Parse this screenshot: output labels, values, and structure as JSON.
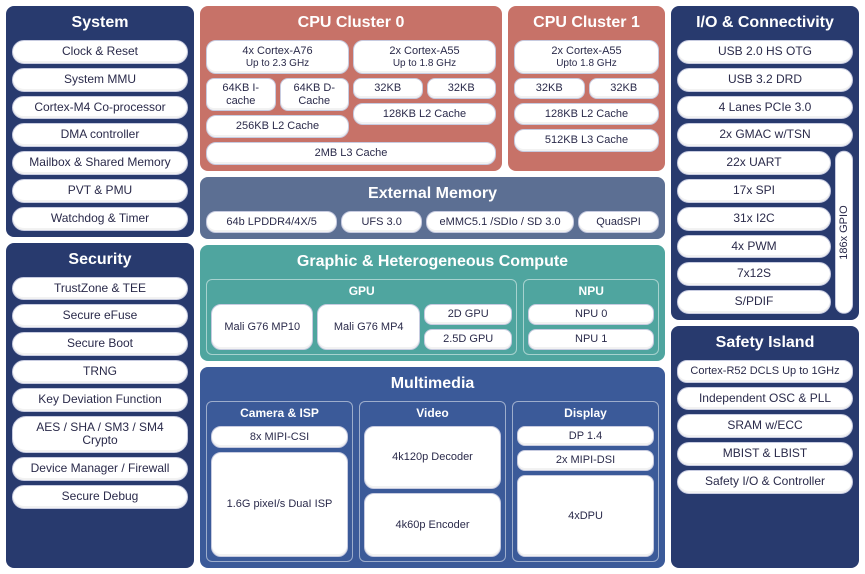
{
  "colors": {
    "navy": "#283a6e",
    "rose": "#c77268",
    "slate": "#5c6f93",
    "teal": "#4fa59f",
    "blue": "#3b5a99",
    "item_bg": "#ffffff",
    "item_border": "#c7cbe0",
    "text": "#2a2a4a",
    "title_text": "#ffffff"
  },
  "system": {
    "title": "System",
    "items": [
      "Clock & Reset",
      "System MMU",
      "Cortex-M4 Co-processor",
      "DMA controller",
      "Mailbox & Shared Memory",
      "PVT & PMU",
      "Watchdog & Timer"
    ]
  },
  "security": {
    "title": "Security",
    "items": [
      "TrustZone & TEE",
      "Secure eFuse",
      "Secure Boot",
      "TRNG",
      "Key Deviation Function",
      "AES / SHA / SM3 / SM4 Crypto",
      "Device Manager / Firewall",
      "Secure Debug"
    ]
  },
  "cpu0": {
    "title": "CPU Cluster 0",
    "coreA": {
      "line1": "4x Cortex-A76",
      "line2": "Up to 2.3 GHz"
    },
    "coreB": {
      "line1": "2x Cortex-A55",
      "line2": "Up to 1.8 GHz"
    },
    "cacheA": [
      "64KB I-cache",
      "64KB D-Cache"
    ],
    "cacheB": [
      "32KB",
      "32KB"
    ],
    "l2A": "256KB L2 Cache",
    "l2B": "128KB L2 Cache",
    "l3": "2MB L3 Cache"
  },
  "cpu1": {
    "title": "CPU Cluster 1",
    "core": {
      "line1": "2x Cortex-A55",
      "line2": "Upto 1.8 GHz"
    },
    "cache": [
      "32KB",
      "32KB"
    ],
    "l2": "128KB L2 Cache",
    "l3": "512KB L3 Cache"
  },
  "extmem": {
    "title": "External Memory",
    "items": [
      "64b LPDDR4/4X/5",
      "UFS 3.0",
      "eMMC5.1 /SDIo / SD 3.0",
      "QuadSPI"
    ]
  },
  "ghc": {
    "title": "Graphic & Heterogeneous Compute",
    "gpu_title": "GPU",
    "gpu": {
      "a": "Mali G76 MP10",
      "b": "Mali G76 MP4",
      "c": "2D GPU",
      "d": "2.5D GPU"
    },
    "npu_title": "NPU",
    "npu": [
      "NPU 0",
      "NPU 1"
    ]
  },
  "mm": {
    "title": "Multimedia",
    "cam_title": "Camera & ISP",
    "cam": [
      "8x MIPI-CSI",
      "1.6G pixeI/s DuaI ISP"
    ],
    "vid_title": "Video",
    "vid": [
      "4k120p Decoder",
      "4k60p Encoder"
    ],
    "disp_title": "Display",
    "disp": [
      "DP 1.4",
      "2x MIPI-DSI",
      "4xDPU"
    ]
  },
  "io": {
    "title": "I/O & Connectivity",
    "top": [
      "USB 2.0 HS OTG",
      "USB 3.2 DRD",
      "4 Lanes PCIe 3.0",
      "2x GMAC w/TSN"
    ],
    "mid": [
      "22x UART",
      "17x SPI",
      "31x I2C",
      "4x PWM",
      "7x12S",
      "S/PDIF"
    ],
    "gpio": "186x GPIO"
  },
  "safety": {
    "title": "Safety Island",
    "items": [
      "Cortex-R52 DCLS Up to 1GHz",
      "Independent OSC & PLL",
      "SRAM w/ECC",
      "MBIST & LBIST",
      "Safety I/O & Controller"
    ]
  }
}
